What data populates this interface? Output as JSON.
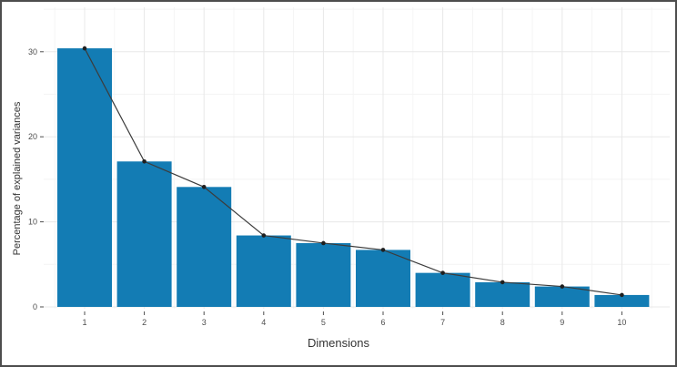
{
  "figure": {
    "background": "#FFFFFF",
    "border_color": "#4D4D4D"
  },
  "chart_data": {
    "type": "bar",
    "subtype": "scree-plot-bar-with-line-overlay",
    "title": "",
    "xlabel": "Dimensions",
    "ylabel": "Percentage of explained variances",
    "categories": [
      "1",
      "2",
      "3",
      "4",
      "5",
      "6",
      "7",
      "8",
      "9",
      "10"
    ],
    "values": [
      30.4,
      17.1,
      14.1,
      8.4,
      7.5,
      6.7,
      4.0,
      2.9,
      2.4,
      1.4
    ],
    "series": [
      {
        "name": "percentage-of-explained-variances",
        "type": "bar",
        "values": [
          30.4,
          17.1,
          14.1,
          8.4,
          7.5,
          6.7,
          4.0,
          2.9,
          2.4,
          1.4
        ]
      },
      {
        "name": "connected-points-overlay",
        "type": "line",
        "values": [
          30.4,
          17.1,
          14.1,
          8.4,
          7.5,
          6.7,
          4.0,
          2.9,
          2.4,
          1.4
        ]
      }
    ],
    "y_ticks": [
      0,
      10,
      20,
      30
    ],
    "y_minor_ticks": [
      5,
      15,
      25,
      35
    ],
    "ylim": [
      0,
      35.3
    ],
    "grid": "major-and-minor-on-white",
    "legend": "none",
    "colors": {
      "bar_fill": "#137CB4",
      "line": "#3C3C3C",
      "point": "#1F1F1F",
      "grid_major": "#E8E8E8",
      "grid_minor": "#F4F4F4",
      "tick_label": "#4D4D4D",
      "axis_title": "#333333"
    }
  }
}
